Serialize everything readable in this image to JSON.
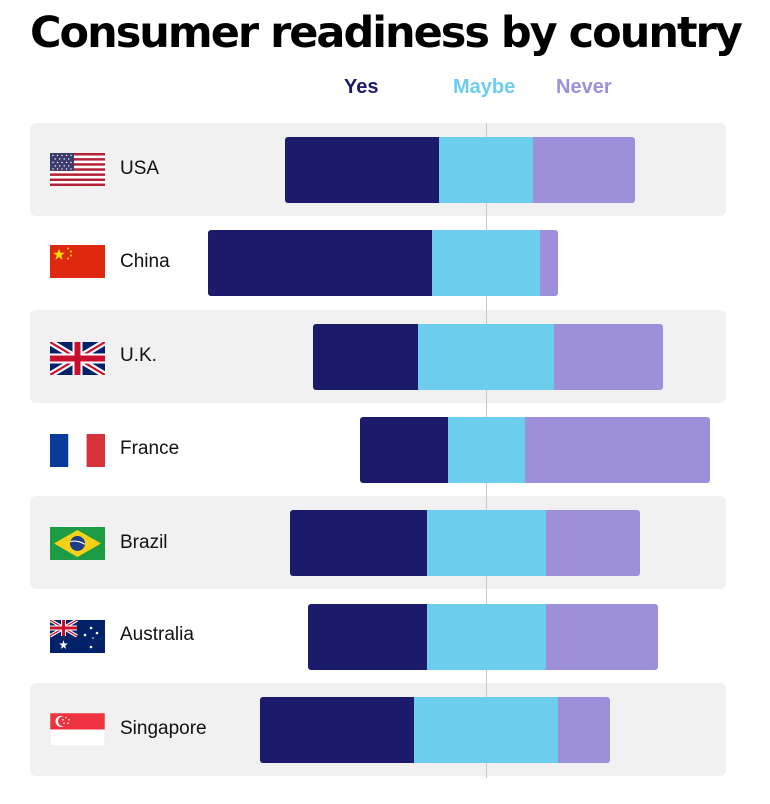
{
  "title": "Consumer readiness by country",
  "legend": {
    "yes": "Yes",
    "maybe": "Maybe",
    "never": "Never"
  },
  "colors": {
    "yes": "#1b1a6b",
    "maybe": "#6dcdec",
    "never": "#9e8fdb",
    "row_background": "#f1f1f1"
  },
  "countries": [
    {
      "name": "USA",
      "flag": "usa-flag-icon"
    },
    {
      "name": "China",
      "flag": "china-flag-icon"
    },
    {
      "name": "U.K.",
      "flag": "uk-flag-icon"
    },
    {
      "name": "France",
      "flag": "france-flag-icon"
    },
    {
      "name": "Brazil",
      "flag": "brazil-flag-icon"
    },
    {
      "name": "Australia",
      "flag": "australia-flag-icon"
    },
    {
      "name": "Singapore",
      "flag": "singapore-flag-icon"
    }
  ],
  "chart_data": {
    "type": "bar",
    "stacked": true,
    "orientation": "horizontal",
    "diverging": true,
    "title": "Consumer readiness by country",
    "categories": [
      "USA",
      "China",
      "U.K.",
      "France",
      "Brazil",
      "Australia",
      "Singapore"
    ],
    "series": [
      {
        "name": "Yes",
        "values": [
          44,
          64,
          30,
          25,
          39,
          34,
          44
        ]
      },
      {
        "name": "Maybe",
        "values": [
          27,
          31,
          39,
          22,
          34,
          34,
          41
        ]
      },
      {
        "name": "Never",
        "values": [
          29,
          5,
          31,
          53,
          27,
          32,
          15
        ]
      }
    ],
    "center": "middle of the Maybe segment",
    "grid": false,
    "legend_position": "top"
  }
}
